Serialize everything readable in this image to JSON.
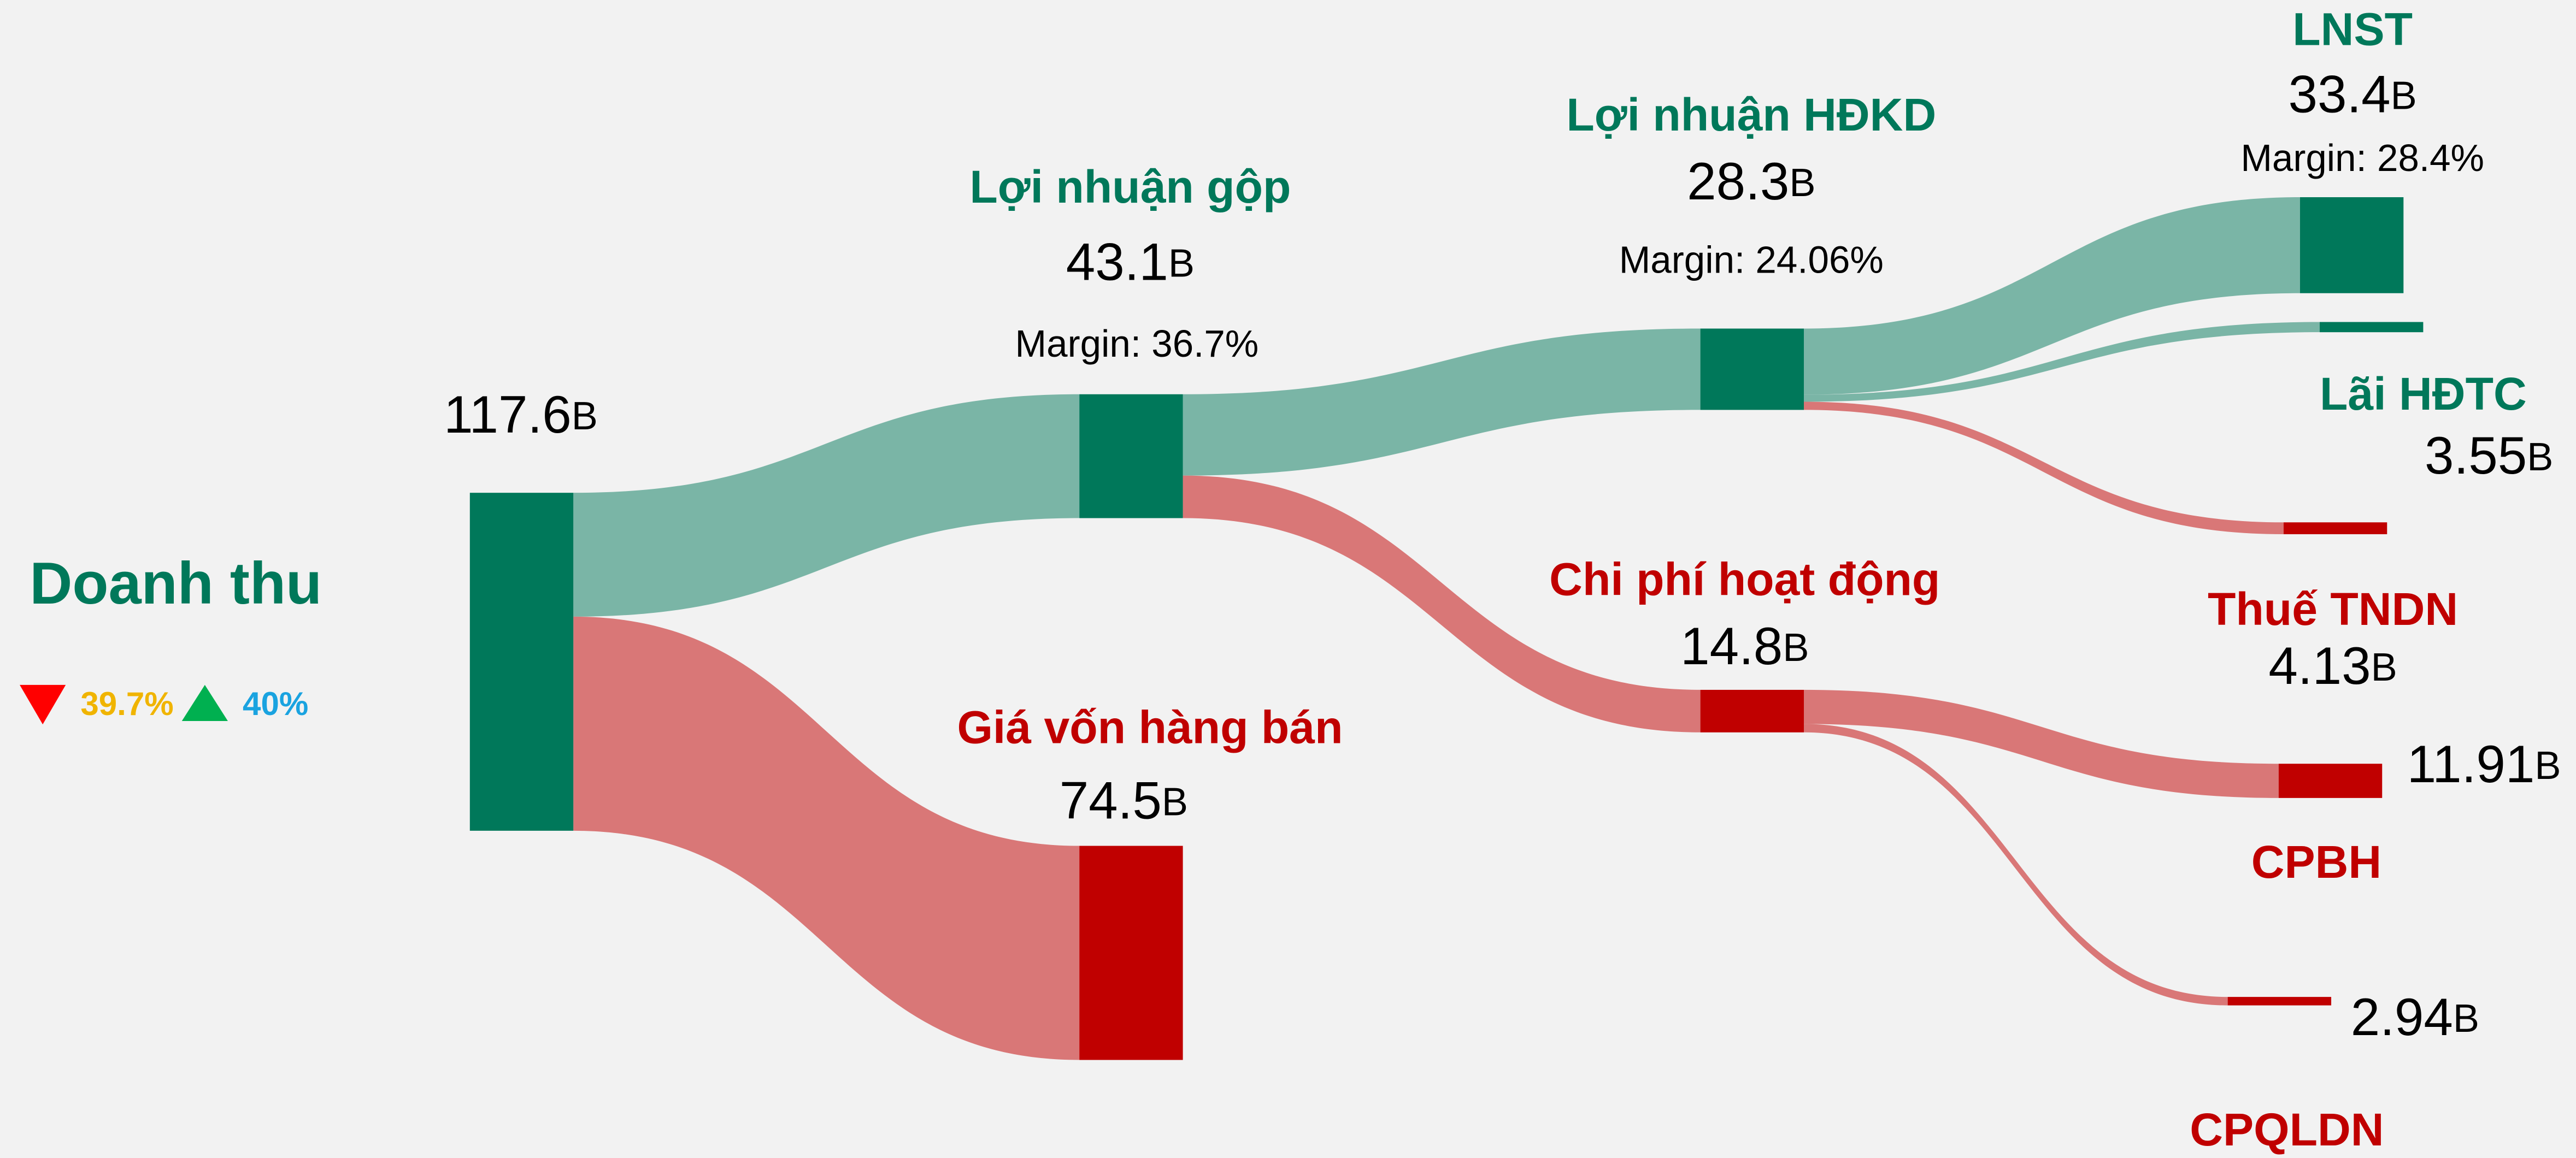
{
  "chart_data": {
    "type": "sankey",
    "nodes": [
      {
        "name": "Doanh thu",
        "value": 117.6,
        "unit": "B",
        "color": "#00785a"
      },
      {
        "name": "Lợi nhuận gộp",
        "value": 43.1,
        "unit": "B",
        "margin": "Margin: 36.7%",
        "color": "#00785a"
      },
      {
        "name": "Giá vốn hàng bán",
        "value": 74.5,
        "unit": "B",
        "color": "#c00000"
      },
      {
        "name": "Lợi nhuận HĐKD",
        "value": 28.3,
        "unit": "B",
        "margin": "Margin: 24.06%",
        "color": "#00785a"
      },
      {
        "name": "Chi phí hoạt động",
        "value": 14.8,
        "unit": "B",
        "color": "#c00000"
      },
      {
        "name": "LNST",
        "value": 33.4,
        "unit": "B",
        "margin": "Margin: 28.4%",
        "color": "#00785a"
      },
      {
        "name": "Lãi HĐTC",
        "value": 3.55,
        "unit": "B",
        "color": "#00785a"
      },
      {
        "name": "Thuế TNDN",
        "value": 4.13,
        "unit": "B",
        "color": "#c00000"
      },
      {
        "name": "CPBH",
        "value": 11.91,
        "unit": "B",
        "color": "#c00000"
      },
      {
        "name": "CPQLDN",
        "value": 2.94,
        "unit": "B",
        "color": "#c00000"
      }
    ],
    "links": [
      {
        "source": 0,
        "target": 1,
        "value": 43.1,
        "color": "#7ab5a6"
      },
      {
        "source": 0,
        "target": 2,
        "value": 74.5,
        "color": "#d97777"
      },
      {
        "source": 1,
        "target": 3,
        "value": 28.3,
        "color": "#7ab5a6"
      },
      {
        "source": 1,
        "target": 4,
        "value": 14.8,
        "color": "#d97777"
      },
      {
        "source": 3,
        "target": 5,
        "value": 33.4,
        "color": "#7ab5a6"
      },
      {
        "source": 3,
        "target": 6,
        "value": 3.55,
        "color": "#7ab5a6"
      },
      {
        "source": 3,
        "target": 7,
        "value": 4.13,
        "color": "#d97777"
      },
      {
        "source": 4,
        "target": 8,
        "value": 11.91,
        "color": "#d97777"
      },
      {
        "source": 4,
        "target": 9,
        "value": 2.94,
        "color": "#d97777"
      }
    ],
    "changes": [
      {
        "text": "39.7%",
        "direction": "down",
        "color": "#f0b400",
        "icon_color": "#ff0000"
      },
      {
        "text": "40%",
        "direction": "up",
        "color": "#1aa3e0",
        "icon_color": "#00b050"
      }
    ]
  }
}
